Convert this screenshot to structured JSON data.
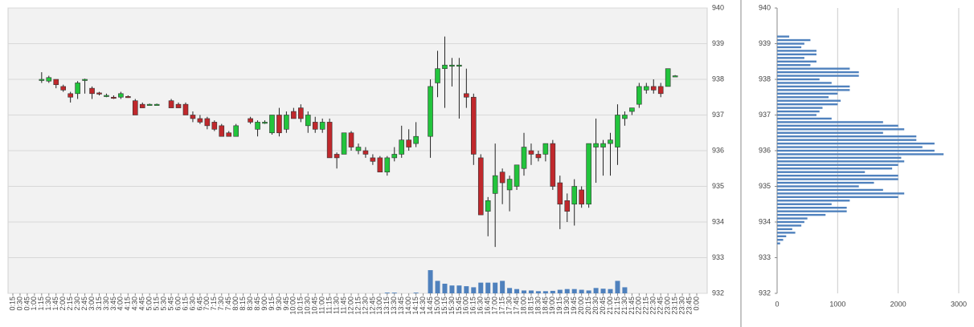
{
  "chart_data": [
    {
      "type": "candlestick",
      "categories": [
        "0:15",
        "0:30",
        "0:45",
        "1:00",
        "1:15",
        "1:30",
        "1:45",
        "2:00",
        "2:15",
        "2:30",
        "2:45",
        "3:00",
        "3:15",
        "3:30",
        "3:45",
        "4:00",
        "4:15",
        "4:30",
        "4:45",
        "5:00",
        "5:15",
        "5:30",
        "5:45",
        "6:00",
        "6:15",
        "6:30",
        "6:45",
        "7:00",
        "7:15",
        "7:30",
        "7:45",
        "8:00",
        "8:15",
        "8:30",
        "8:45",
        "9:00",
        "9:15",
        "9:30",
        "9:45",
        "10:00",
        "10:15",
        "10:30",
        "10:45",
        "11:00",
        "11:15",
        "11:30",
        "11:45",
        "12:00",
        "12:15",
        "12:30",
        "12:45",
        "13:00",
        "13:15",
        "13:30",
        "13:45",
        "14:00",
        "14:15",
        "14:30",
        "14:45",
        "15:00",
        "15:15",
        "15:30",
        "15:45",
        "16:00",
        "16:15",
        "16:30",
        "16:45",
        "17:00",
        "17:15",
        "17:30",
        "17:45",
        "18:00",
        "18:15",
        "18:30",
        "18:45",
        "19:00",
        "19:15",
        "19:30",
        "19:45",
        "20:00",
        "20:15",
        "20:30",
        "20:45",
        "21:00",
        "21:15",
        "21:30",
        "21:45",
        "22:00",
        "22:15",
        "22:30",
        "22:45",
        "23:00",
        "23:15",
        "23:30",
        "23:45",
        "0:00"
      ],
      "open": [
        null,
        null,
        null,
        null,
        938.0,
        937.95,
        938.0,
        937.8,
        937.6,
        937.6,
        937.98,
        937.75,
        937.62,
        937.55,
        937.5,
        937.5,
        937.52,
        937.4,
        937.3,
        937.3,
        937.3,
        null,
        937.4,
        937.3,
        937.3,
        937.0,
        936.9,
        936.9,
        936.8,
        936.7,
        936.5,
        936.4,
        null,
        936.9,
        936.6,
        936.8,
        936.5,
        937.0,
        936.6,
        937.1,
        937.2,
        936.7,
        936.8,
        936.6,
        936.8,
        935.9,
        935.9,
        936.5,
        936.0,
        936.0,
        935.8,
        935.8,
        935.4,
        935.8,
        935.9,
        936.3,
        936.2,
        null,
        936.4,
        937.9,
        938.3,
        938.4,
        938.4,
        937.6,
        937.5,
        935.8,
        934.3,
        934.8,
        935.4,
        934.9,
        935.0,
        935.5,
        936.0,
        935.9,
        935.9,
        936.2,
        935.1,
        934.6,
        934.5,
        934.9,
        934.5,
        936.1,
        936.1,
        936.2,
        936.1,
        936.9,
        937.1,
        937.3,
        937.7,
        937.8,
        937.8,
        937.8,
        938.1,
        null,
        null,
        null
      ],
      "high": [
        null,
        null,
        null,
        null,
        938.2,
        938.1,
        938.0,
        937.85,
        937.65,
        937.95,
        938.02,
        937.8,
        937.65,
        937.6,
        937.55,
        937.65,
        937.55,
        937.45,
        937.35,
        937.32,
        937.32,
        null,
        937.45,
        937.35,
        937.35,
        937.1,
        937.0,
        936.95,
        936.85,
        936.75,
        936.55,
        936.75,
        null,
        936.95,
        936.85,
        936.85,
        937.0,
        937.2,
        937.1,
        937.2,
        937.3,
        937.1,
        936.95,
        936.9,
        936.9,
        935.95,
        936.5,
        936.55,
        936.2,
        936.1,
        935.9,
        935.85,
        935.85,
        936.1,
        936.7,
        936.6,
        936.8,
        null,
        938.0,
        938.8,
        939.2,
        938.6,
        938.6,
        938.3,
        937.6,
        935.9,
        934.7,
        936.2,
        935.5,
        935.3,
        935.6,
        936.5,
        936.2,
        936.0,
        936.2,
        936.3,
        935.3,
        934.8,
        935.2,
        935.0,
        936.2,
        936.9,
        936.3,
        936.5,
        937.3,
        937.1,
        937.2,
        937.9,
        937.9,
        938.0,
        937.9,
        938.3,
        938.12,
        null,
        null,
        null
      ],
      "low": [
        null,
        null,
        null,
        null,
        937.9,
        937.9,
        937.75,
        937.65,
        937.35,
        937.45,
        937.6,
        937.45,
        937.55,
        937.5,
        937.45,
        937.45,
        937.48,
        937.0,
        937.2,
        937.28,
        937.28,
        null,
        937.2,
        937.2,
        937.0,
        936.8,
        936.75,
        936.6,
        936.55,
        936.4,
        936.4,
        936.4,
        null,
        936.75,
        936.4,
        936.75,
        936.45,
        936.4,
        936.5,
        936.9,
        936.8,
        936.5,
        936.5,
        936.5,
        935.8,
        935.5,
        935.9,
        936.0,
        935.9,
        935.8,
        935.6,
        935.4,
        935.3,
        935.7,
        935.8,
        936.0,
        936.1,
        null,
        935.8,
        937.5,
        937.2,
        937.8,
        936.9,
        937.2,
        935.6,
        934.2,
        933.6,
        933.3,
        934.5,
        934.3,
        934.9,
        935.3,
        935.6,
        935.7,
        935.7,
        934.9,
        933.8,
        934.0,
        933.9,
        934.4,
        934.4,
        935.1,
        935.3,
        935.3,
        935.6,
        936.7,
        937.0,
        937.2,
        937.6,
        937.6,
        937.5,
        937.8,
        938.08,
        null,
        null,
        null
      ],
      "close": [
        null,
        null,
        null,
        null,
        938.0,
        938.05,
        937.85,
        937.7,
        937.5,
        937.9,
        938.0,
        937.6,
        937.6,
        937.55,
        937.48,
        937.6,
        937.5,
        937.0,
        937.2,
        937.3,
        937.3,
        null,
        937.2,
        937.2,
        937.0,
        936.9,
        936.8,
        936.7,
        936.6,
        936.4,
        936.4,
        936.7,
        null,
        936.8,
        936.8,
        936.8,
        937.0,
        936.5,
        937.0,
        936.9,
        936.9,
        937.0,
        936.6,
        936.8,
        935.8,
        935.8,
        936.5,
        936.1,
        936.1,
        935.9,
        935.7,
        935.4,
        935.8,
        935.9,
        936.3,
        936.1,
        936.4,
        null,
        937.8,
        938.3,
        938.4,
        938.4,
        938.4,
        937.5,
        935.9,
        934.2,
        934.6,
        935.3,
        935.1,
        935.2,
        935.6,
        936.1,
        935.9,
        935.8,
        936.2,
        935.0,
        934.5,
        934.3,
        935.0,
        934.5,
        936.2,
        936.2,
        936.2,
        936.3,
        937.0,
        937.0,
        937.2,
        937.8,
        937.8,
        937.7,
        937.6,
        938.3,
        938.1,
        null,
        null,
        null
      ],
      "volume": [
        null,
        null,
        null,
        null,
        null,
        null,
        null,
        null,
        null,
        null,
        null,
        null,
        null,
        null,
        null,
        null,
        null,
        null,
        null,
        null,
        null,
        null,
        null,
        null,
        null,
        null,
        null,
        null,
        null,
        null,
        null,
        null,
        null,
        null,
        null,
        null,
        null,
        null,
        null,
        null,
        null,
        null,
        null,
        null,
        null,
        null,
        null,
        null,
        null,
        null,
        null,
        null,
        0.02,
        0.02,
        null,
        null,
        0.02,
        null,
        0.65,
        0.35,
        0.27,
        0.22,
        0.22,
        0.2,
        0.17,
        0.3,
        0.3,
        0.3,
        0.35,
        0.15,
        0.12,
        0.08,
        0.08,
        0.06,
        0.06,
        0.07,
        0.1,
        0.12,
        0.12,
        0.1,
        0.08,
        0.15,
        0.13,
        0.12,
        0.35,
        0.17,
        null,
        null,
        null,
        null,
        null,
        null,
        null,
        null,
        null,
        null
      ],
      "up_color": "#22c43c",
      "down_color": "#c0282c",
      "volume_color": "#4f81bd",
      "ylim": [
        932,
        940
      ],
      "yticks": [
        932,
        933,
        934,
        935,
        936,
        937,
        938,
        939,
        940
      ],
      "grid": true
    },
    {
      "type": "bar",
      "orientation": "horizontal",
      "y": [
        939.2,
        939.1,
        939.0,
        938.9,
        938.8,
        938.7,
        938.6,
        938.5,
        938.4,
        938.3,
        938.2,
        938.1,
        938.0,
        937.9,
        937.8,
        937.7,
        937.6,
        937.5,
        937.4,
        937.3,
        937.2,
        937.1,
        937.0,
        936.9,
        936.8,
        936.7,
        936.6,
        936.5,
        936.4,
        936.3,
        936.2,
        936.1,
        936.0,
        935.9,
        935.8,
        935.7,
        935.6,
        935.5,
        935.4,
        935.3,
        935.2,
        935.1,
        935.0,
        934.9,
        934.8,
        934.7,
        934.6,
        934.5,
        934.4,
        934.3,
        934.2,
        934.1,
        934.0,
        933.9,
        933.8,
        933.7,
        933.6,
        933.5,
        933.4
      ],
      "values": [
        200,
        550,
        450,
        400,
        650,
        650,
        450,
        650,
        550,
        1200,
        1350,
        1350,
        700,
        900,
        1200,
        1200,
        1000,
        850,
        1050,
        1000,
        750,
        700,
        650,
        900,
        1750,
        2000,
        2100,
        1750,
        2300,
        2300,
        2600,
        2400,
        2600,
        2750,
        2050,
        2100,
        2000,
        1900,
        1450,
        2000,
        2000,
        1600,
        1350,
        1750,
        2100,
        2000,
        1200,
        900,
        1150,
        1150,
        800,
        500,
        450,
        400,
        250,
        300,
        150,
        100,
        50
      ],
      "color": "#4f81bd",
      "xlim": [
        0,
        3000
      ],
      "xticks": [
        0,
        1000,
        2000,
        3000
      ],
      "ylim": [
        932,
        940
      ],
      "yticks": [
        932,
        933,
        934,
        935,
        936,
        937,
        938,
        939,
        940
      ],
      "grid": true
    }
  ]
}
